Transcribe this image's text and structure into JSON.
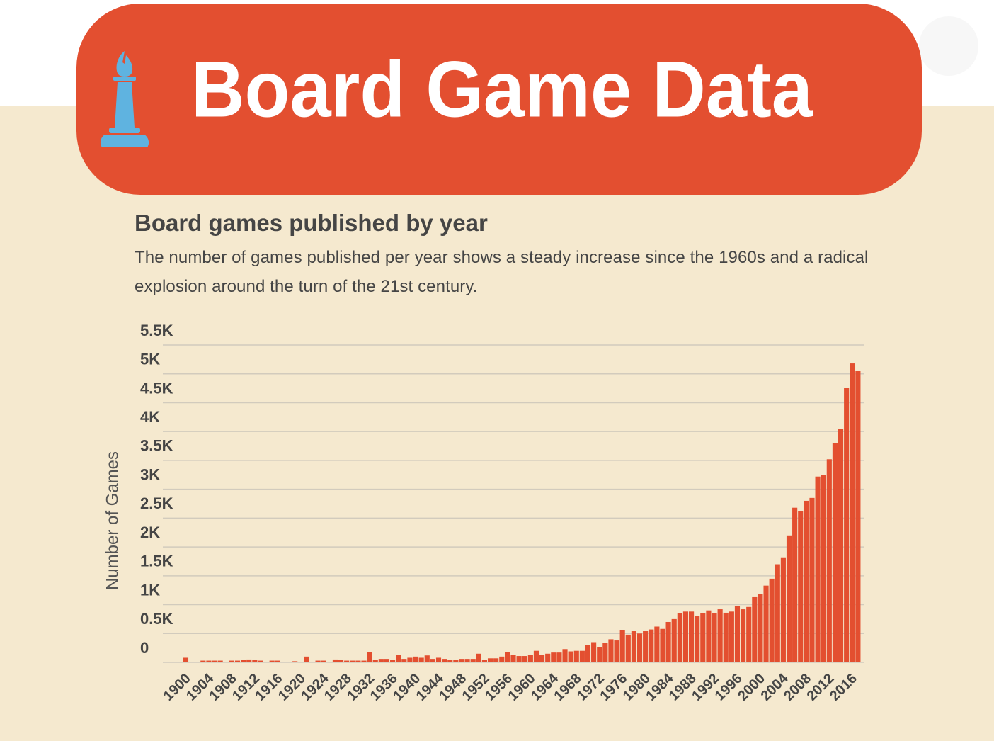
{
  "header": {
    "title": "Board Game Data"
  },
  "chart_data": {
    "type": "bar",
    "title": "Board games published by year",
    "subtitle": "The number of games published per year shows a steady increase since the 1960s and a radical explosion around the turn of the 21st century.",
    "y_label": "Number of Games",
    "color": "#e34f30",
    "grid": true,
    "x": [
      1900,
      1901,
      1902,
      1903,
      1904,
      1905,
      1906,
      1907,
      1908,
      1909,
      1910,
      1911,
      1912,
      1913,
      1914,
      1915,
      1916,
      1917,
      1918,
      1919,
      1920,
      1921,
      1922,
      1923,
      1924,
      1925,
      1926,
      1927,
      1928,
      1929,
      1930,
      1931,
      1932,
      1933,
      1934,
      1935,
      1936,
      1937,
      1938,
      1939,
      1940,
      1941,
      1942,
      1943,
      1944,
      1945,
      1946,
      1947,
      1948,
      1949,
      1950,
      1951,
      1952,
      1953,
      1954,
      1955,
      1956,
      1957,
      1958,
      1959,
      1960,
      1961,
      1962,
      1963,
      1964,
      1965,
      1966,
      1967,
      1968,
      1969,
      1970,
      1971,
      1972,
      1973,
      1974,
      1975,
      1976,
      1977,
      1978,
      1979,
      1980,
      1981,
      1982,
      1983,
      1984,
      1985,
      1986,
      1987,
      1988,
      1989,
      1990,
      1991,
      1992,
      1993,
      1994,
      1995,
      1996,
      1997,
      1998,
      1999,
      2000,
      2001,
      2002,
      2003,
      2004,
      2005,
      2006,
      2007,
      2008,
      2009,
      2010,
      2011,
      2012,
      2013,
      2014,
      2015,
      2016,
      2017
    ],
    "values": [
      80,
      0,
      0,
      30,
      30,
      30,
      30,
      0,
      30,
      30,
      40,
      50,
      40,
      30,
      0,
      30,
      30,
      0,
      0,
      20,
      0,
      100,
      0,
      30,
      30,
      0,
      50,
      40,
      30,
      30,
      30,
      30,
      180,
      40,
      60,
      60,
      40,
      130,
      60,
      80,
      100,
      80,
      120,
      60,
      80,
      60,
      40,
      40,
      60,
      60,
      60,
      150,
      40,
      70,
      70,
      100,
      180,
      130,
      110,
      110,
      130,
      200,
      130,
      150,
      170,
      170,
      230,
      190,
      200,
      200,
      300,
      350,
      260,
      340,
      400,
      380,
      560,
      480,
      540,
      500,
      540,
      570,
      620,
      580,
      700,
      750,
      850,
      880,
      880,
      800,
      850,
      900,
      850,
      920,
      860,
      880,
      980,
      920,
      960,
      1130,
      1180,
      1330,
      1450,
      1700,
      1820,
      2200,
      2680,
      2620,
      2800,
      2850,
      3220,
      3250,
      3520,
      3800,
      4040,
      4760,
      5180,
      5050
    ],
    "xlim": [
      1896,
      2018
    ],
    "xticks": [
      1900,
      1904,
      1908,
      1912,
      1916,
      1920,
      1924,
      1928,
      1932,
      1936,
      1940,
      1944,
      1948,
      1952,
      1956,
      1960,
      1964,
      1968,
      1972,
      1976,
      1980,
      1984,
      1988,
      1992,
      1996,
      2000,
      2004,
      2008,
      2012,
      2016
    ],
    "ylim": [
      0,
      5500
    ],
    "yticks": [
      0,
      {
        "value": 500,
        "label": "0.5K"
      },
      {
        "value": 1000,
        "label": "1K"
      },
      {
        "value": 1500,
        "label": "1.5K"
      },
      {
        "value": 2000,
        "label": "2K"
      },
      {
        "value": 2500,
        "label": "2.5K"
      },
      {
        "value": 3000,
        "label": "3K"
      },
      {
        "value": 3500,
        "label": "3.5K"
      },
      {
        "value": 4000,
        "label": "4K"
      },
      {
        "value": 4500,
        "label": "4.5K"
      },
      {
        "value": 5000,
        "label": "5K"
      },
      {
        "value": 5500,
        "label": "5.5K"
      }
    ]
  }
}
